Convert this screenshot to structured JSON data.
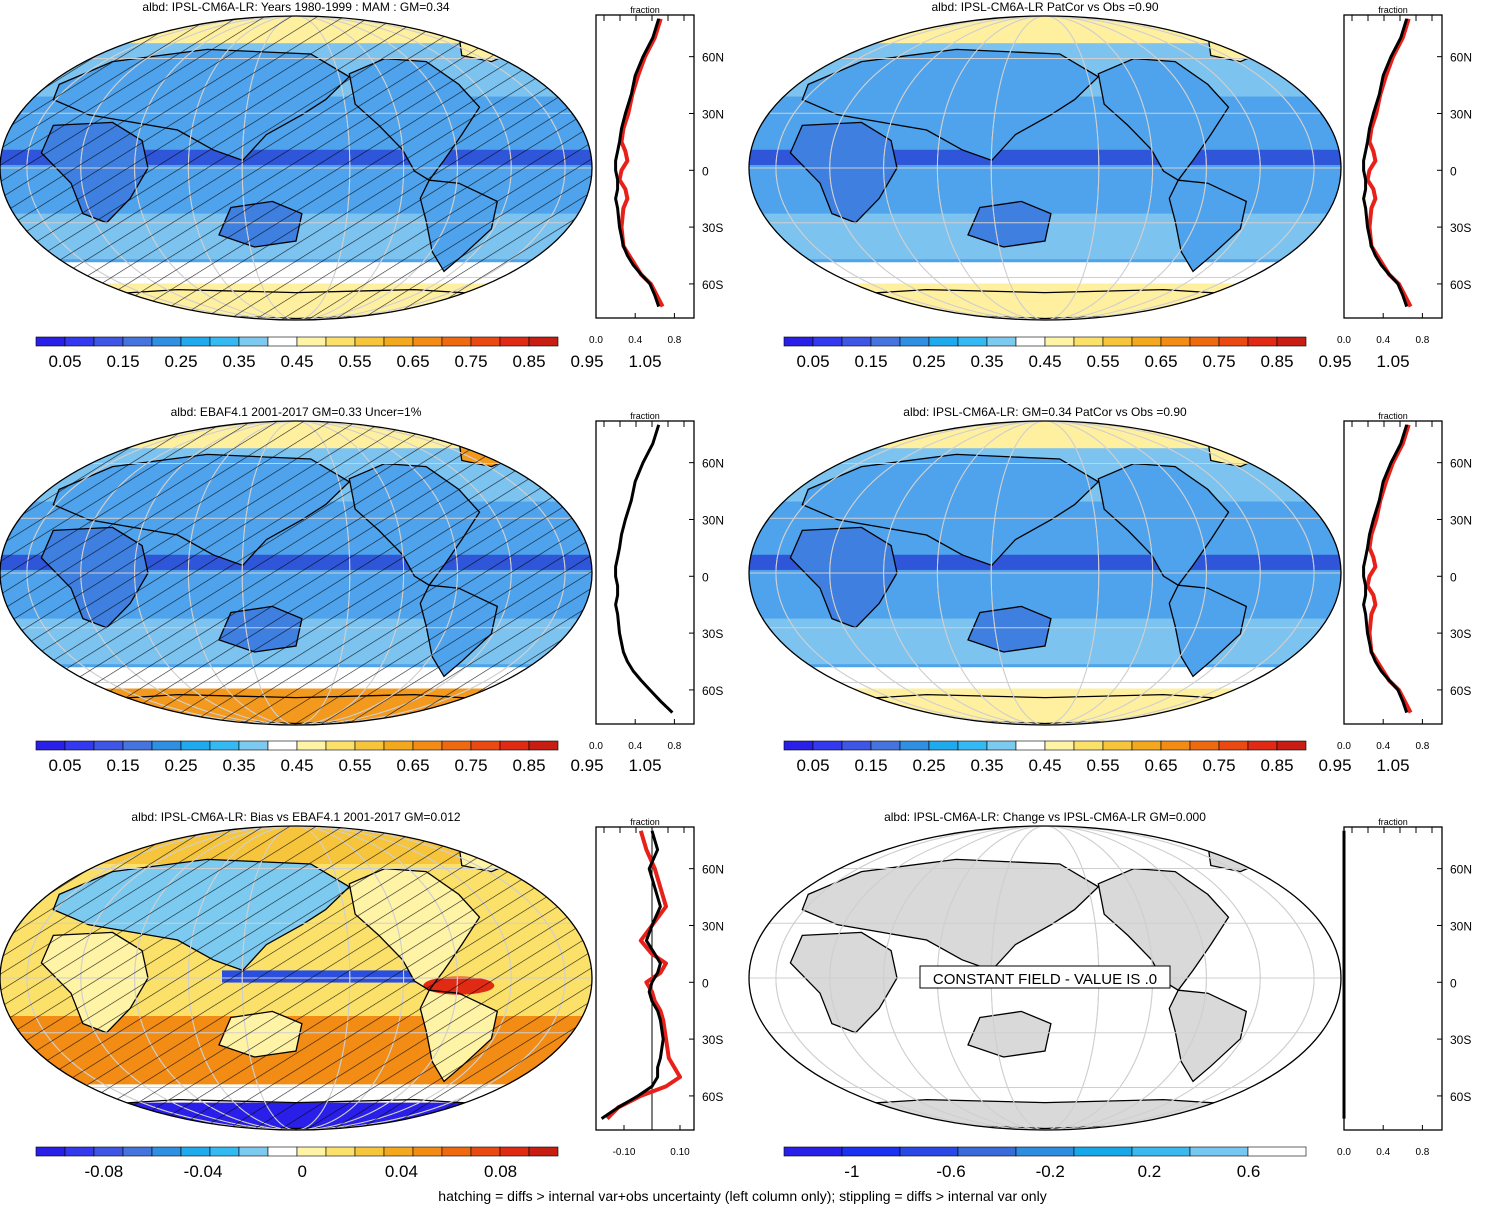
{
  "colors": {
    "abs_palette": [
      "#2a1fe8",
      "#3438ee",
      "#3f55e6",
      "#4674df",
      "#2f8fe3",
      "#1faaee",
      "#35b9f2",
      "#7ccaf0",
      "#ffffff",
      "#fff3a6",
      "#fbe16a",
      "#f7c53c",
      "#f4a91d",
      "#f38c14",
      "#ef6a0f",
      "#ea4a12",
      "#e12a13",
      "#c81d13"
    ],
    "abs_mapfill": [
      "#2f55d8",
      "#3e7fe0",
      "#4fa3ec",
      "#7cc3f0",
      "#ffffff",
      "#fff0a0"
    ],
    "bias_palette": [
      "#2a1fe8",
      "#3438ee",
      "#3f55e6",
      "#4674df",
      "#2f8fe3",
      "#1faaee",
      "#35b9f2",
      "#7ccaf0",
      "#ffffff",
      "#fff3a6",
      "#fbe16a",
      "#f7c53c",
      "#f4a91d",
      "#f38c14",
      "#ef6a0f",
      "#ea4a12",
      "#e12a13",
      "#c81d13"
    ],
    "change_palette": [
      "#2a1fe8",
      "#1d2ff0",
      "#2948e6",
      "#3b6ad9",
      "#2d8de0",
      "#17a8ea",
      "#3cb8f0",
      "#77c8f0",
      "#ffffff"
    ],
    "land_constant": "#d9d9d9",
    "profile_model": "#000000",
    "profile_obs": "#e8201a",
    "profile_obs2": "#1f1fe0"
  },
  "panels": [
    {
      "id": "model-climatology",
      "title": "albd: IPSL-CM6A-LR: Years 1980-1999 : MAM : GM=0.34",
      "map_style": "abs",
      "hatched": true,
      "colorbar_labels": [
        "0.05",
        "0.15",
        "0.25",
        "0.35",
        "0.45",
        "0.55",
        "0.65",
        "0.75",
        "0.85",
        "0.95",
        "1.05"
      ],
      "colorbar_palette": "abs_palette"
    },
    {
      "id": "model-vs-obs",
      "title": "albd: IPSL-CM6A-LR PatCor vs Obs =0.90",
      "map_style": "abs",
      "hatched": false,
      "colorbar_labels": [
        "0.05",
        "0.15",
        "0.25",
        "0.35",
        "0.45",
        "0.55",
        "0.65",
        "0.75",
        "0.85",
        "0.95",
        "1.05"
      ],
      "colorbar_palette": "abs_palette"
    },
    {
      "id": "obs-climatology",
      "title": "albd: EBAF4.1 2001-2017 GM=0.33 Uncer=1%",
      "map_style": "abs",
      "hatched": true,
      "colorbar_labels": [
        "0.05",
        "0.15",
        "0.25",
        "0.35",
        "0.45",
        "0.55",
        "0.65",
        "0.75",
        "0.85",
        "0.95",
        "1.05"
      ],
      "colorbar_palette": "abs_palette"
    },
    {
      "id": "model-patcor",
      "title": "albd: IPSL-CM6A-LR: GM=0.34 PatCor vs Obs =0.90",
      "map_style": "abs",
      "hatched": false,
      "colorbar_labels": [
        "0.05",
        "0.15",
        "0.25",
        "0.35",
        "0.45",
        "0.55",
        "0.65",
        "0.75",
        "0.85",
        "0.95",
        "1.05"
      ],
      "colorbar_palette": "abs_palette"
    },
    {
      "id": "bias",
      "title": "albd: IPSL-CM6A-LR: Bias vs EBAF4.1 2001-2017 GM=0.012",
      "map_style": "bias",
      "hatched": true,
      "colorbar_labels": [
        "-0.08",
        "-0.04",
        "0",
        "0.04",
        "0.08"
      ],
      "colorbar_palette": "bias_palette"
    },
    {
      "id": "change",
      "title": "albd: IPSL-CM6A-LR: Change vs IPSL-CM6A-LR GM=0.000",
      "map_style": "constant",
      "hatched": false,
      "constant_label": "CONSTANT FIELD - VALUE IS .0",
      "colorbar_labels": [
        "-1",
        "-0.6",
        "-0.2",
        "0.2",
        "0.6"
      ],
      "colorbar_palette": "change_palette"
    }
  ],
  "profiles": {
    "header": "fraction",
    "lat_ticks": [
      "60N",
      "30N",
      "0",
      "30S",
      "60S"
    ],
    "abs_x_ticks": [
      "0.0",
      "0.4",
      "0.8"
    ],
    "bias_x_ticks": [
      "-0.10",
      "0.10"
    ],
    "change_x_ticks": [
      "0.0",
      "0.4",
      "0.8"
    ]
  },
  "chart_data": [
    {
      "type": "line",
      "title": "albd: IPSL-CM6A-LR: Years 1980-1999 : MAM : GM=0.34",
      "xlabel": "fraction",
      "xlim": [
        0,
        1
      ],
      "ylim": [
        -78,
        82
      ],
      "series": [
        {
          "x": [
            0.64,
            0.58,
            0.48,
            0.4,
            0.36,
            0.3,
            0.26,
            0.24,
            0.22,
            0.2,
            0.2,
            0.22,
            0.22,
            0.2,
            0.22,
            0.24,
            0.28,
            0.32,
            0.38,
            0.46,
            0.55,
            0.6,
            0.64
          ],
          "y": [
            80,
            70,
            60,
            50,
            40,
            30,
            22,
            15,
            10,
            5,
            0,
            -5,
            -10,
            -15,
            -20,
            -30,
            -40,
            -45,
            -50,
            -55,
            -60,
            -66,
            -72
          ]
        },
        {
          "x": [
            0.66,
            0.6,
            0.5,
            0.43,
            0.37,
            0.33,
            0.28,
            0.26,
            0.3,
            0.32,
            0.26,
            0.24,
            0.3,
            0.32,
            0.28,
            0.26,
            0.28,
            0.34,
            0.4,
            0.46,
            0.56,
            0.62,
            0.68
          ],
          "y": [
            80,
            70,
            60,
            50,
            40,
            30,
            22,
            15,
            10,
            5,
            0,
            -5,
            -10,
            -15,
            -20,
            -30,
            -40,
            -45,
            -50,
            -55,
            -60,
            -66,
            -72
          ]
        }
      ]
    },
    {
      "type": "line",
      "title": "albd: EBAF4.1 2001-2017 GM=0.33 Uncer=1%",
      "xlabel": "fraction",
      "xlim": [
        0,
        1
      ],
      "ylim": [
        -78,
        82
      ],
      "series": [
        {
          "x": [
            0.64,
            0.58,
            0.48,
            0.4,
            0.36,
            0.3,
            0.26,
            0.24,
            0.22,
            0.2,
            0.2,
            0.22,
            0.22,
            0.2,
            0.22,
            0.24,
            0.28,
            0.32,
            0.38,
            0.46,
            0.55,
            0.66,
            0.78
          ],
          "y": [
            80,
            70,
            60,
            50,
            40,
            30,
            22,
            15,
            10,
            5,
            0,
            -5,
            -10,
            -15,
            -20,
            -30,
            -40,
            -45,
            -50,
            -55,
            -60,
            -66,
            -72
          ]
        }
      ]
    },
    {
      "type": "line",
      "title": "albd: IPSL-CM6A-LR: Bias vs EBAF4.1 2001-2017 GM=0.012",
      "xlabel": "fraction",
      "xlim": [
        -0.2,
        0.15
      ],
      "ylim": [
        -78,
        82
      ],
      "series": [
        {
          "x": [
            0.0,
            0.02,
            -0.01,
            0.01,
            0.03,
            0.0,
            -0.02,
            0.01,
            0.03,
            0.02,
            0.0,
            -0.01,
            0.0,
            0.02,
            0.03,
            0.04,
            0.03,
            0.02,
            0.02,
            0.0,
            -0.05,
            -0.12,
            -0.18
          ],
          "y": [
            80,
            70,
            60,
            50,
            40,
            30,
            22,
            15,
            10,
            5,
            0,
            -5,
            -10,
            -15,
            -20,
            -30,
            -40,
            -45,
            -50,
            -55,
            -60,
            -66,
            -72
          ]
        },
        {
          "x": [
            -0.04,
            -0.02,
            0.01,
            0.03,
            0.05,
            0.0,
            -0.04,
            0.0,
            0.05,
            0.03,
            -0.02,
            0.0,
            0.01,
            0.03,
            0.04,
            0.05,
            0.06,
            0.08,
            0.1,
            0.05,
            -0.04,
            -0.12,
            -0.16
          ],
          "y": [
            80,
            70,
            60,
            50,
            40,
            30,
            22,
            15,
            10,
            5,
            0,
            -5,
            -10,
            -15,
            -20,
            -30,
            -40,
            -45,
            -50,
            -55,
            -60,
            -66,
            -72
          ]
        }
      ]
    },
    {
      "type": "line",
      "title": "albd: IPSL-CM6A-LR: Change vs IPSL-CM6A-LR GM=0.000",
      "xlabel": "fraction",
      "xlim": [
        0,
        1
      ],
      "ylim": [
        -78,
        82
      ],
      "series": [
        {
          "x": [
            0,
            0,
            0,
            0,
            0
          ],
          "y": [
            80,
            40,
            0,
            -40,
            -72
          ]
        }
      ]
    }
  ],
  "footnote": "hatching = diffs > internal var+obs uncertainty (left column only); stippling = diffs > internal var only"
}
